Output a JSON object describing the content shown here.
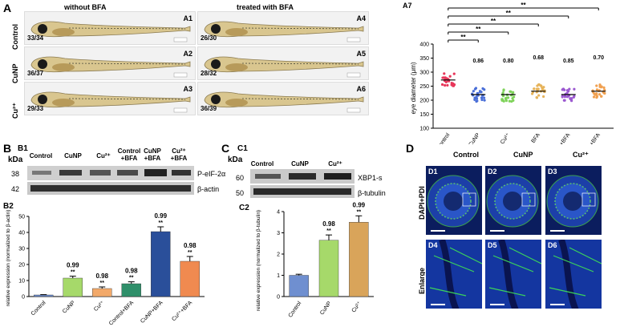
{
  "panelA": {
    "letter": "A",
    "col_headers": [
      "without BFA",
      "treated with BFA"
    ],
    "row_labels": [
      "Control",
      "CuNP",
      "Cu²⁺"
    ],
    "panels": [
      {
        "label": "A1",
        "count": "33/34"
      },
      {
        "label": "A4",
        "count": "26/30"
      },
      {
        "label": "A2",
        "count": "36/37"
      },
      {
        "label": "A5",
        "count": "28/32"
      },
      {
        "label": "A3",
        "count": "29/33"
      },
      {
        "label": "A6",
        "count": "36/39"
      }
    ]
  },
  "panelA7": {
    "label": "A7",
    "ylabel": "eye diameter (μm)",
    "categories": [
      "Control",
      "CuNP",
      "Cu²⁺",
      "BFA",
      "CuNP +BFA",
      "Cu²⁺+BFA"
    ],
    "ratios": [
      "",
      "0.86",
      "0.80",
      "0.68",
      "0.85",
      "0.70"
    ],
    "sig": [
      "**",
      "**",
      "**",
      "**",
      "**"
    ],
    "colors": [
      "#e8365a",
      "#4a6fd8",
      "#7fd35a",
      "#e6b35a",
      "#9b59d0",
      "#f0a050"
    ]
  },
  "panelB": {
    "letter": "B",
    "sub1": "B1",
    "kda": "kDa",
    "lanes": [
      "Control",
      "CuNP",
      "Cu²⁺",
      "Control +BFA",
      "CuNP +BFA",
      "Cu²⁺ +BFA"
    ],
    "blots": [
      {
        "kda": "38",
        "name": "P-eIF-2α"
      },
      {
        "kda": "42",
        "name": "β-actin"
      }
    ],
    "sub2": "B2",
    "ylabel": "relative expression (normalized to β-actin)"
  },
  "panelC": {
    "letter": "C",
    "sub1": "C1",
    "kda": "kDa",
    "lanes": [
      "Control",
      "CuNP",
      "Cu²⁺"
    ],
    "blots": [
      {
        "kda": "60",
        "name": "XBP1-s"
      },
      {
        "kda": "50",
        "name": "β-tubulin"
      }
    ],
    "sub2": "C2",
    "ylabel": "relative expression (normalized to β-tubulin)"
  },
  "panelD": {
    "letter": "D",
    "col_headers": [
      "Control",
      "CuNP",
      "Cu²⁺"
    ],
    "row_labels": [
      "DAPI+PDI",
      "Enlarge"
    ],
    "tiles": [
      "D1",
      "D2",
      "D3",
      "D4",
      "D5",
      "D6"
    ]
  },
  "chart_data": [
    {
      "type": "scatter",
      "title": "A7",
      "ylabel": "eye diameter (μm)",
      "ylim": [
        100,
        400
      ],
      "yticks": [
        100,
        150,
        200,
        250,
        300,
        350,
        400
      ],
      "categories": [
        "Control",
        "CuNP",
        "Cu²⁺",
        "BFA",
        "CuNP +BFA",
        "Cu²⁺+BFA"
      ],
      "means": [
        272,
        220,
        220,
        232,
        220,
        232
      ],
      "ratio_labels": [
        "",
        "0.86",
        "0.80",
        "0.68",
        "0.85",
        "0.70"
      ]
    },
    {
      "type": "bar",
      "title": "B2",
      "ylabel": "relative expression (normalized to β-actin)",
      "ylim": [
        0,
        50
      ],
      "yticks": [
        0,
        10,
        20,
        30,
        40,
        50
      ],
      "categories": [
        "Control",
        "CuNP",
        "Cu²⁺",
        "Control+BFA",
        "CuNP+BFA",
        "Cu²⁺+BFA"
      ],
      "values": [
        1,
        11.5,
        5,
        8,
        40.5,
        22
      ],
      "errors": [
        0.2,
        1.2,
        1,
        1.2,
        3,
        3
      ],
      "ratio_labels": [
        "",
        "0.99",
        "0.98",
        "0.98",
        "0.99",
        "0.98"
      ],
      "sig": [
        "",
        "**",
        "**",
        "**",
        "**",
        "**"
      ],
      "colors": [
        "#6f8fd0",
        "#a6d96a",
        "#f2a96a",
        "#2f8f6a",
        "#2a4f9a",
        "#f08a50"
      ]
    },
    {
      "type": "bar",
      "title": "C2",
      "ylabel": "relative expression (normalized to β-tubulin)",
      "ylim": [
        0,
        4
      ],
      "yticks": [
        0,
        1,
        2,
        3,
        4
      ],
      "categories": [
        "Control",
        "CuNP",
        "Cu²⁺"
      ],
      "values": [
        1,
        2.65,
        3.5
      ],
      "errors": [
        0.05,
        0.25,
        0.3
      ],
      "ratio_labels": [
        "",
        "0.98",
        "0.99"
      ],
      "sig": [
        "",
        "**",
        "**"
      ],
      "colors": [
        "#6f8fd0",
        "#a6d96a",
        "#d9a45a"
      ]
    }
  ]
}
